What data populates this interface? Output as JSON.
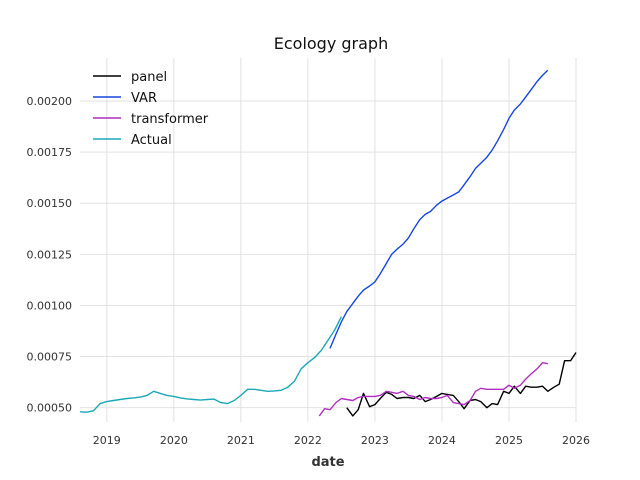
{
  "chart_data": {
    "type": "line",
    "title": "Ecology graph",
    "xlabel": "date",
    "ylabel": "",
    "xlim": [
      2018.6,
      2026.0
    ],
    "ylim": [
      0.00043,
      0.00221
    ],
    "x_ticks": [
      {
        "value": 2019,
        "label": "2019"
      },
      {
        "value": 2020,
        "label": "2020"
      },
      {
        "value": 2021,
        "label": "2021"
      },
      {
        "value": 2022,
        "label": "2022"
      },
      {
        "value": 2023,
        "label": "2023"
      },
      {
        "value": 2024,
        "label": "2024"
      },
      {
        "value": 2025,
        "label": "2025"
      },
      {
        "value": 2026,
        "label": "2026"
      }
    ],
    "y_ticks": [
      {
        "value": 0.0005,
        "label": "0.00050"
      },
      {
        "value": 0.00075,
        "label": "0.00075"
      },
      {
        "value": 0.001,
        "label": "0.00100"
      },
      {
        "value": 0.00125,
        "label": "0.00125"
      },
      {
        "value": 0.0015,
        "label": "0.00150"
      },
      {
        "value": 0.00175,
        "label": "0.00175"
      },
      {
        "value": 0.002,
        "label": "0.00200"
      }
    ],
    "grid": true,
    "legend": "top-left",
    "series": [
      {
        "name": "panel",
        "color": "#000000",
        "x": [
          2022.58,
          2022.67,
          2022.75,
          2022.83,
          2022.92,
          2023.0,
          2023.08,
          2023.17,
          2023.25,
          2023.33,
          2023.42,
          2023.5,
          2023.58,
          2023.67,
          2023.75,
          2023.83,
          2023.92,
          2024.0,
          2024.08,
          2024.17,
          2024.25,
          2024.33,
          2024.42,
          2024.5,
          2024.58,
          2024.67,
          2024.75,
          2024.83,
          2024.92,
          2025.0,
          2025.08,
          2025.17,
          2025.25,
          2025.33,
          2025.42,
          2025.5,
          2025.58,
          2025.67,
          2025.75,
          2025.83,
          2025.92,
          2026.0
        ],
        "y": [
          0.0005,
          0.00046,
          0.00049,
          0.00057,
          0.000505,
          0.000515,
          0.000545,
          0.000575,
          0.000565,
          0.000545,
          0.00055,
          0.00055,
          0.000545,
          0.00056,
          0.00053,
          0.00054,
          0.000555,
          0.00057,
          0.000565,
          0.00056,
          0.00053,
          0.000495,
          0.000535,
          0.00054,
          0.00053,
          0.0005,
          0.00052,
          0.000515,
          0.00058,
          0.00057,
          0.000605,
          0.00057,
          0.000605,
          0.0006,
          0.0006,
          0.000605,
          0.00058,
          0.0006,
          0.000615,
          0.00073,
          0.00073,
          0.00077
        ]
      },
      {
        "name": "VAR",
        "color": "#1746e0",
        "x": [
          2022.33,
          2022.42,
          2022.5,
          2022.58,
          2022.67,
          2022.75,
          2022.83,
          2022.92,
          2023.0,
          2023.08,
          2023.17,
          2023.25,
          2023.33,
          2023.42,
          2023.5,
          2023.58,
          2023.67,
          2023.75,
          2023.83,
          2023.92,
          2024.0,
          2024.08,
          2024.17,
          2024.25,
          2024.33,
          2024.42,
          2024.5,
          2024.58,
          2024.67,
          2024.75,
          2024.83,
          2024.92,
          2025.0,
          2025.08,
          2025.17,
          2025.25,
          2025.33,
          2025.42,
          2025.5,
          2025.58
        ],
        "y": [
          0.00079,
          0.00086,
          0.00092,
          0.00097,
          0.00101,
          0.001045,
          0.001075,
          0.001095,
          0.001115,
          0.001155,
          0.001205,
          0.00125,
          0.001275,
          0.0013,
          0.00133,
          0.001375,
          0.00142,
          0.001445,
          0.00146,
          0.00149,
          0.00151,
          0.001525,
          0.00154,
          0.001555,
          0.00159,
          0.00163,
          0.00167,
          0.001695,
          0.001725,
          0.00176,
          0.001805,
          0.00186,
          0.001915,
          0.001955,
          0.001985,
          0.00202,
          0.002055,
          0.002095,
          0.002125,
          0.00215
        ]
      },
      {
        "name": "transformer",
        "color": "#b02fc0",
        "x": [
          2022.17,
          2022.25,
          2022.33,
          2022.42,
          2022.5,
          2022.58,
          2022.67,
          2022.75,
          2022.83,
          2022.92,
          2023.0,
          2023.08,
          2023.17,
          2023.25,
          2023.33,
          2023.42,
          2023.5,
          2023.58,
          2023.67,
          2023.75,
          2023.83,
          2023.92,
          2024.0,
          2024.08,
          2024.17,
          2024.25,
          2024.33,
          2024.42,
          2024.5,
          2024.58,
          2024.67,
          2024.75,
          2024.83,
          2024.92,
          2025.0,
          2025.08,
          2025.17,
          2025.25,
          2025.33,
          2025.42,
          2025.5,
          2025.58
        ],
        "y": [
          0.00046,
          0.000495,
          0.00049,
          0.000525,
          0.000545,
          0.00054,
          0.000535,
          0.00055,
          0.000555,
          0.000555,
          0.000555,
          0.00056,
          0.00058,
          0.000575,
          0.00057,
          0.00058,
          0.00056,
          0.000555,
          0.00054,
          0.00055,
          0.000545,
          0.000545,
          0.00055,
          0.00056,
          0.000525,
          0.00052,
          0.000515,
          0.000535,
          0.00058,
          0.000595,
          0.00059,
          0.00059,
          0.00059,
          0.00059,
          0.00061,
          0.000595,
          0.00061,
          0.00064,
          0.000665,
          0.00069,
          0.00072,
          0.000715
        ]
      },
      {
        "name": "Actual",
        "color": "#1aa8b8",
        "x": [
          2018.6,
          2018.7,
          2018.8,
          2018.9,
          2019.0,
          2019.1,
          2019.2,
          2019.3,
          2019.4,
          2019.5,
          2019.6,
          2019.7,
          2019.8,
          2019.9,
          2020.0,
          2020.1,
          2020.2,
          2020.3,
          2020.4,
          2020.5,
          2020.6,
          2020.7,
          2020.8,
          2020.9,
          2021.0,
          2021.1,
          2021.2,
          2021.3,
          2021.4,
          2021.5,
          2021.6,
          2021.7,
          2021.8,
          2021.9,
          2022.0,
          2022.1,
          2022.2,
          2022.3,
          2022.4,
          2022.5
        ],
        "y": [
          0.00048,
          0.000478,
          0.000485,
          0.00052,
          0.00053,
          0.000535,
          0.00054,
          0.000545,
          0.000548,
          0.000552,
          0.00056,
          0.00058,
          0.00057,
          0.00056,
          0.000555,
          0.000548,
          0.000543,
          0.00054,
          0.000537,
          0.00054,
          0.000542,
          0.000525,
          0.00052,
          0.000535,
          0.00056,
          0.00059,
          0.00059,
          0.000585,
          0.00058,
          0.000582,
          0.000585,
          0.0006,
          0.00063,
          0.00069,
          0.00072,
          0.000745,
          0.00078,
          0.00083,
          0.00088,
          0.000945
        ]
      }
    ]
  }
}
